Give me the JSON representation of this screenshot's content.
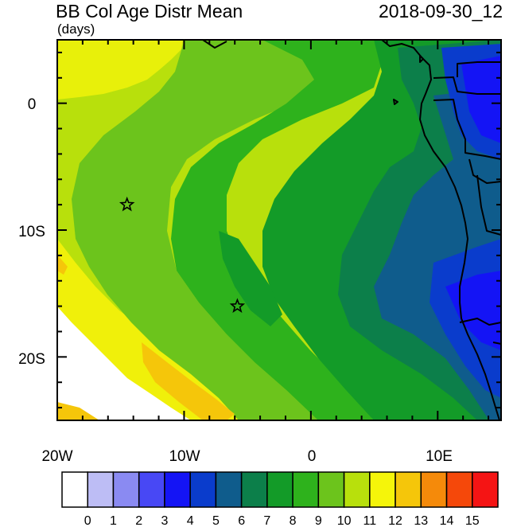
{
  "title_left": "BB Col Age Distr Mean",
  "title_right": "2018-09-30_12",
  "units": "(days)",
  "lat_labels": [
    "0",
    "10S",
    "20S"
  ],
  "lon_labels": [
    "20W",
    "10W",
    "0",
    "10E"
  ],
  "colorbar": {
    "labels": [
      "0",
      "1",
      "2",
      "3",
      "4",
      "5",
      "6",
      "7",
      "8",
      "9",
      "10",
      "11",
      "12",
      "13",
      "14",
      "15"
    ],
    "colors": [
      "#ffffff",
      "#bdbdf5",
      "#8a8af2",
      "#4848f5",
      "#1414f5",
      "#0a3ccc",
      "#0f5c8c",
      "#0c7f4a",
      "#139b28",
      "#2eb21c",
      "#6cc41c",
      "#b8e00c",
      "#f5f50a",
      "#f5c60a",
      "#f58a0a",
      "#f5480a",
      "#f51414"
    ]
  },
  "markers": [
    {
      "name": "star-1",
      "lon": -14.5,
      "lat": -8.0
    },
    {
      "name": "star-2",
      "lon": -5.8,
      "lat": -16.0
    }
  ]
}
